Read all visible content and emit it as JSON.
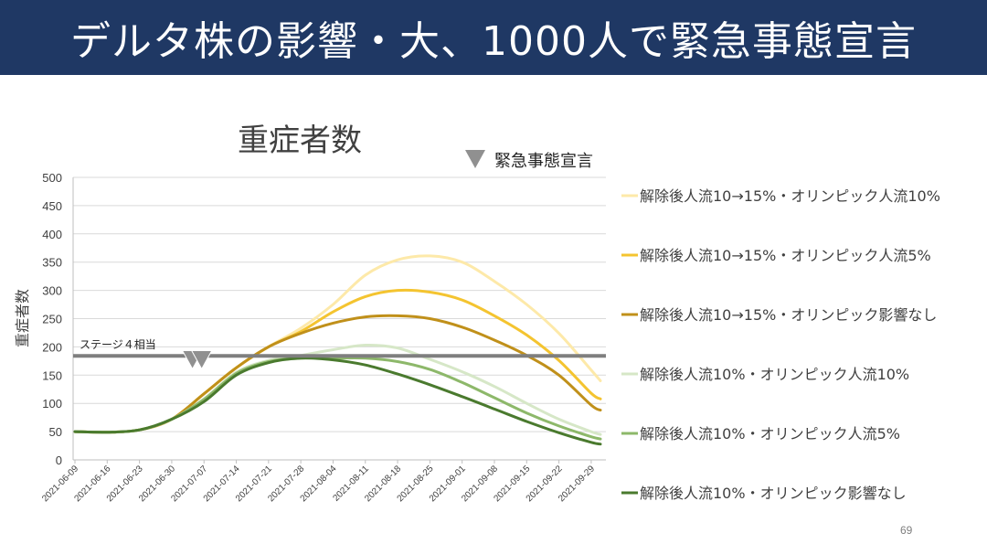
{
  "slide": {
    "title": "デルタ株の影響・大、1000人で緊急事態宣言",
    "page_number": "69"
  },
  "chart_data": {
    "type": "line",
    "title": "重症者数",
    "ylabel": "重症者数",
    "xlabel": "",
    "ylim": [
      0,
      500
    ],
    "yticks": [
      0,
      50,
      100,
      150,
      200,
      250,
      300,
      350,
      400,
      450,
      500
    ],
    "grid": true,
    "xtick_labels": [
      "2021-06-09",
      "2021-06-16",
      "2021-06-23",
      "2021-06-30",
      "2021-07-07",
      "2021-07-14",
      "2021-07-21",
      "2021-07-28",
      "2021-08-04",
      "2021-08-11",
      "2021-08-18",
      "2021-08-25",
      "2021-09-01",
      "2021-09-08",
      "2021-09-15",
      "2021-09-22",
      "2021-09-29"
    ],
    "x_day_range": [
      0,
      114
    ],
    "reference_line": {
      "label": "ステージ４相当",
      "value": 184,
      "color": "#7f7f7f"
    },
    "markers": {
      "legend_label": "緊急事態宣言",
      "color": "#909090",
      "points": [
        {
          "day": 25.5,
          "value": 161
        },
        {
          "day": 27.5,
          "value": 161
        }
      ]
    },
    "series": [
      {
        "name": "解除後人流10→15%・オリンピック人流10%",
        "color": "#fde9a9",
        "points": [
          [
            0,
            50
          ],
          [
            7,
            49
          ],
          [
            14,
            53
          ],
          [
            21,
            72
          ],
          [
            28,
            117
          ],
          [
            35,
            163
          ],
          [
            42,
            200
          ],
          [
            49,
            233
          ],
          [
            56,
            275
          ],
          [
            63,
            327
          ],
          [
            70,
            354
          ],
          [
            77,
            361
          ],
          [
            84,
            350
          ],
          [
            91,
            316
          ],
          [
            98,
            275
          ],
          [
            105,
            224
          ],
          [
            112,
            159
          ],
          [
            114,
            140
          ]
        ]
      },
      {
        "name": "解除後人流10→15%・オリンピック人流5%",
        "color": "#f4c430",
        "points": [
          [
            0,
            50
          ],
          [
            7,
            49
          ],
          [
            14,
            53
          ],
          [
            21,
            72
          ],
          [
            28,
            117
          ],
          [
            35,
            163
          ],
          [
            42,
            200
          ],
          [
            49,
            227
          ],
          [
            56,
            262
          ],
          [
            63,
            289
          ],
          [
            70,
            300
          ],
          [
            77,
            297
          ],
          [
            84,
            283
          ],
          [
            91,
            255
          ],
          [
            98,
            221
          ],
          [
            105,
            176
          ],
          [
            112,
            118
          ],
          [
            114,
            108
          ]
        ]
      },
      {
        "name": "解除後人流10→15%・オリンピック影響なし",
        "color": "#c0901a",
        "points": [
          [
            0,
            50
          ],
          [
            7,
            49
          ],
          [
            14,
            53
          ],
          [
            21,
            72
          ],
          [
            28,
            117
          ],
          [
            35,
            163
          ],
          [
            42,
            200
          ],
          [
            49,
            224
          ],
          [
            56,
            242
          ],
          [
            63,
            253
          ],
          [
            70,
            255
          ],
          [
            77,
            250
          ],
          [
            84,
            235
          ],
          [
            91,
            212
          ],
          [
            98,
            185
          ],
          [
            105,
            150
          ],
          [
            112,
            97
          ],
          [
            114,
            88
          ]
        ]
      },
      {
        "name": "解除後人流10%・オリンピック人流10%",
        "color": "#d6e7c7",
        "points": [
          [
            0,
            50
          ],
          [
            7,
            49
          ],
          [
            14,
            53
          ],
          [
            21,
            72
          ],
          [
            28,
            108
          ],
          [
            35,
            155
          ],
          [
            42,
            176
          ],
          [
            49,
            185
          ],
          [
            56,
            195
          ],
          [
            63,
            203
          ],
          [
            70,
            198
          ],
          [
            77,
            178
          ],
          [
            84,
            156
          ],
          [
            91,
            130
          ],
          [
            98,
            100
          ],
          [
            105,
            72
          ],
          [
            112,
            50
          ],
          [
            114,
            45
          ]
        ]
      },
      {
        "name": "解除後人流10%・オリンピック人流5%",
        "color": "#8db86a",
        "points": [
          [
            0,
            50
          ],
          [
            7,
            49
          ],
          [
            14,
            53
          ],
          [
            21,
            72
          ],
          [
            28,
            107
          ],
          [
            35,
            153
          ],
          [
            42,
            174
          ],
          [
            49,
            180
          ],
          [
            56,
            180
          ],
          [
            63,
            180
          ],
          [
            70,
            174
          ],
          [
            77,
            160
          ],
          [
            84,
            137
          ],
          [
            91,
            110
          ],
          [
            98,
            83
          ],
          [
            105,
            60
          ],
          [
            112,
            41
          ],
          [
            114,
            37
          ]
        ]
      },
      {
        "name": "解除後人流10%・オリンピック影響なし",
        "color": "#4a7a2e",
        "points": [
          [
            0,
            50
          ],
          [
            7,
            49
          ],
          [
            14,
            53
          ],
          [
            21,
            72
          ],
          [
            28,
            103
          ],
          [
            35,
            150
          ],
          [
            42,
            172
          ],
          [
            49,
            180
          ],
          [
            56,
            177
          ],
          [
            63,
            168
          ],
          [
            70,
            152
          ],
          [
            77,
            133
          ],
          [
            84,
            112
          ],
          [
            91,
            90
          ],
          [
            98,
            68
          ],
          [
            105,
            48
          ],
          [
            112,
            31
          ],
          [
            114,
            28
          ]
        ]
      }
    ]
  }
}
